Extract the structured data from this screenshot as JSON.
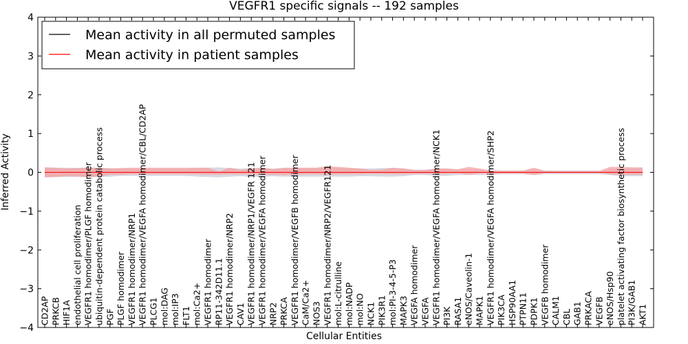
{
  "chart_data": {
    "type": "line",
    "title": "VEGFR1 specific signals -- 192 samples",
    "xlabel": "Cellular Entities",
    "ylabel": "Inferred Activity",
    "ylim": [
      -4,
      4
    ],
    "yticks": [
      4,
      3,
      2,
      1,
      0,
      -1,
      -2,
      -3,
      -4
    ],
    "ytick_labels": [
      "4",
      "3",
      "2",
      "1",
      "0",
      "−1",
      "−2",
      "−3",
      "−4"
    ],
    "grid": false,
    "legend_position": "top-left",
    "categories": [
      "CD2AP",
      "PRKCB",
      "HIF1A",
      "endothelial cell proliferation",
      "VEGFR1 homodimer/PLGF homodimer",
      "ubiquitin-dependent protein catabolic process",
      "PGF",
      "PLGF homodimer",
      "VEGFR1 homodimer/NRP1",
      "VEGFR1 homodimer/VEGFA homodimer/CBL/CD2AP",
      "PLCG1",
      "mol:DAG",
      "mol:IP3",
      "FLT1",
      "mol:Ca2+",
      "VEGFR1 homodimer",
      "RP11-342D11.1",
      "VEGFR1 homodimer/NRP2",
      "CAV1",
      "VEGFR1 homodimer/NRP1/VEGFR 121",
      "VEGFR1 homodimer/VEGFA homodimer",
      "NRP2",
      "PRKCA",
      "VEGFR1 homodimer/VEGFB homodimer",
      "CaM/Ca2+",
      "NOS3",
      "VEGFR1 homodimer/NRP2/VEGFR121",
      "mol:L-citrulline",
      "mol:NADP",
      "mol:NO",
      "NCK1",
      "PIK3R1",
      "mol:PI-3-4-5-P3",
      "MAPK3",
      "VEGFA homodimer",
      "VEGFA",
      "VEGFR1 homodimer/VEGFA homodimer/NCK1",
      "PI3K",
      "RASA1",
      "eNOS/Caveolin-1",
      "MAPK1",
      "VEGFR1 homodimer/VEGFA homodimer/SHP2",
      "PIK3CA",
      "HSP90AA1",
      "PTPN11",
      "PDPK1",
      "VEGFB homodimer",
      "CALM1",
      "CBL",
      "GAB1",
      "PRKACA",
      "VEGFB",
      "eNOS/Hsp90",
      "platelet activating factor biosynthetic process",
      "PI3K/GAB1",
      "AKT1"
    ],
    "series": [
      {
        "name": "Mean activity in all permuted samples",
        "color": "#000000",
        "band_color": "#c9c9d6",
        "values": [
          0,
          0,
          0,
          0,
          0,
          0,
          0,
          0,
          0,
          0,
          0,
          0,
          0,
          0,
          0,
          0,
          0,
          0,
          0,
          0,
          0,
          0,
          0,
          0,
          0,
          0,
          0,
          0,
          0,
          0,
          0,
          0,
          0,
          0,
          0,
          0,
          0,
          0,
          0,
          0,
          0,
          0,
          0,
          0,
          0,
          0,
          0,
          0,
          0,
          0,
          0,
          0,
          0,
          0,
          0,
          0
        ],
        "lower": [
          -0.13,
          -0.12,
          -0.12,
          -0.11,
          -0.13,
          -0.12,
          -0.11,
          -0.09,
          -0.09,
          -0.09,
          -0.09,
          -0.09,
          -0.09,
          -0.09,
          -0.11,
          -0.12,
          -0.13,
          -0.11,
          -0.1,
          -0.11,
          -0.11,
          -0.1,
          -0.11,
          -0.11,
          -0.11,
          -0.11,
          -0.11,
          -0.11,
          -0.11,
          -0.1,
          -0.1,
          -0.11,
          -0.11,
          -0.1,
          -0.07,
          -0.07,
          -0.09,
          -0.09,
          -0.07,
          -0.07,
          -0.07,
          -0.06,
          -0.05,
          -0.05,
          -0.05,
          -0.07,
          -0.05,
          -0.05,
          -0.05,
          -0.05,
          -0.05,
          -0.05,
          -0.07,
          -0.1,
          -0.1,
          -0.1
        ],
        "upper": [
          0.13,
          0.12,
          0.12,
          0.11,
          0.13,
          0.12,
          0.11,
          0.09,
          0.09,
          0.09,
          0.09,
          0.09,
          0.09,
          0.09,
          0.11,
          0.12,
          0.13,
          0.11,
          0.1,
          0.11,
          0.11,
          0.1,
          0.11,
          0.11,
          0.11,
          0.11,
          0.11,
          0.11,
          0.11,
          0.1,
          0.1,
          0.11,
          0.11,
          0.1,
          0.07,
          0.07,
          0.09,
          0.09,
          0.07,
          0.07,
          0.07,
          0.06,
          0.05,
          0.05,
          0.05,
          0.07,
          0.05,
          0.05,
          0.05,
          0.05,
          0.05,
          0.05,
          0.07,
          0.1,
          0.1,
          0.1
        ]
      },
      {
        "name": "Mean activity in patient samples",
        "color": "#ff0000",
        "band_color": "#f4a0a0",
        "values": [
          0,
          0,
          0,
          0,
          0,
          0,
          0,
          0,
          0,
          0,
          0,
          0,
          0,
          0,
          0,
          0,
          0,
          0,
          0,
          0,
          0,
          0,
          0,
          0,
          0,
          0,
          0,
          0,
          0,
          0,
          0,
          0,
          0,
          0,
          0,
          0,
          0,
          0,
          0,
          0,
          0,
          0,
          0,
          0,
          0,
          0,
          0,
          0,
          0,
          0,
          0,
          0,
          0,
          0,
          0,
          0
        ],
        "lower": [
          -0.13,
          -0.12,
          -0.1,
          -0.11,
          -0.12,
          -0.11,
          -0.06,
          -0.06,
          -0.05,
          -0.05,
          -0.05,
          -0.05,
          -0.05,
          -0.05,
          -0.05,
          -0.06,
          -0.06,
          -0.05,
          -0.05,
          -0.05,
          -0.06,
          -0.06,
          -0.07,
          -0.06,
          -0.05,
          -0.05,
          -0.06,
          -0.05,
          -0.05,
          -0.05,
          -0.04,
          -0.04,
          -0.05,
          -0.05,
          -0.04,
          -0.04,
          -0.04,
          -0.04,
          -0.03,
          -0.06,
          -0.03,
          -0.04,
          -0.03,
          -0.03,
          -0.03,
          -0.07,
          -0.02,
          -0.02,
          -0.02,
          -0.02,
          -0.02,
          -0.02,
          -0.05,
          -0.06,
          -0.06,
          -0.06
        ],
        "upper": [
          0.13,
          0.12,
          0.1,
          0.11,
          0.12,
          0.11,
          0.1,
          0.11,
          0.12,
          0.12,
          0.12,
          0.12,
          0.12,
          0.12,
          0.12,
          0.12,
          0.02,
          0.12,
          0.06,
          0.1,
          0.12,
          0.08,
          0.12,
          0.12,
          0.12,
          0.12,
          0.16,
          0.14,
          0.12,
          0.1,
          0.06,
          0.07,
          0.12,
          0.1,
          0.06,
          0.06,
          0.1,
          0.1,
          0.08,
          0.14,
          0.1,
          0.05,
          0.04,
          0.04,
          0.04,
          0.12,
          0.04,
          0.03,
          0.03,
          0.03,
          0.03,
          0.03,
          0.14,
          0.14,
          0.13,
          0.13
        ]
      }
    ]
  }
}
